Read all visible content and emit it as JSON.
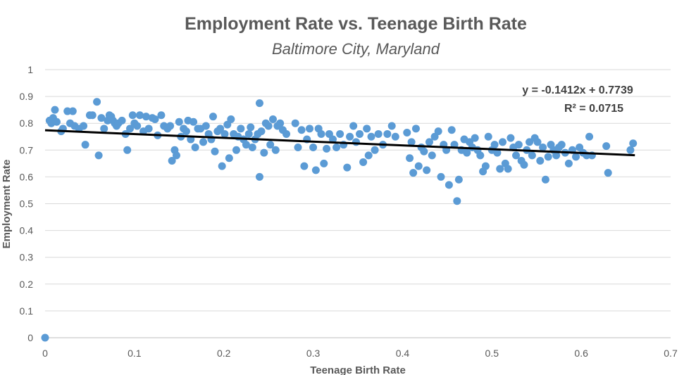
{
  "chart_data": {
    "type": "scatter",
    "title": "Employment Rate vs. Teenage Birth Rate",
    "subtitle": "Baltimore City, Maryland",
    "xlabel": "Teenage Birth Rate",
    "ylabel": "Employment Rate",
    "xlim": [
      0,
      0.7
    ],
    "ylim": [
      0,
      1
    ],
    "x_ticks": [
      "0",
      "0.1",
      "0.2",
      "0.3",
      "0.4",
      "0.5",
      "0.6",
      "0.7"
    ],
    "y_ticks": [
      "0",
      "0.1",
      "0.2",
      "0.3",
      "0.4",
      "0.5",
      "0.6",
      "0.7",
      "0.8",
      "0.9",
      "1"
    ],
    "grid": "horizontal",
    "marker_color": "#5b9bd5",
    "trendline": {
      "slope": -0.1412,
      "intercept": 0.7739,
      "equation": "y = -0.1412x + 0.7739",
      "r_squared": "R² = 0.0715",
      "color": "#000000"
    },
    "points": [
      [
        0.0,
        0.0
      ],
      [
        0.005,
        0.81
      ],
      [
        0.007,
        0.8
      ],
      [
        0.009,
        0.82
      ],
      [
        0.011,
        0.85
      ],
      [
        0.013,
        0.805
      ],
      [
        0.018,
        0.77
      ],
      [
        0.02,
        0.78
      ],
      [
        0.025,
        0.845
      ],
      [
        0.028,
        0.8
      ],
      [
        0.031,
        0.845
      ],
      [
        0.033,
        0.79
      ],
      [
        0.038,
        0.78
      ],
      [
        0.043,
        0.79
      ],
      [
        0.045,
        0.72
      ],
      [
        0.05,
        0.83
      ],
      [
        0.053,
        0.83
      ],
      [
        0.058,
        0.88
      ],
      [
        0.06,
        0.68
      ],
      [
        0.063,
        0.82
      ],
      [
        0.066,
        0.78
      ],
      [
        0.07,
        0.81
      ],
      [
        0.072,
        0.83
      ],
      [
        0.074,
        0.825
      ],
      [
        0.076,
        0.81
      ],
      [
        0.078,
        0.8
      ],
      [
        0.08,
        0.79
      ],
      [
        0.082,
        0.8
      ],
      [
        0.086,
        0.81
      ],
      [
        0.09,
        0.76
      ],
      [
        0.092,
        0.7
      ],
      [
        0.095,
        0.78
      ],
      [
        0.098,
        0.83
      ],
      [
        0.1,
        0.8
      ],
      [
        0.103,
        0.79
      ],
      [
        0.106,
        0.83
      ],
      [
        0.11,
        0.77
      ],
      [
        0.113,
        0.825
      ],
      [
        0.116,
        0.78
      ],
      [
        0.12,
        0.82
      ],
      [
        0.123,
        0.815
      ],
      [
        0.126,
        0.755
      ],
      [
        0.13,
        0.83
      ],
      [
        0.133,
        0.79
      ],
      [
        0.137,
        0.78
      ],
      [
        0.14,
        0.79
      ],
      [
        0.142,
        0.66
      ],
      [
        0.145,
        0.7
      ],
      [
        0.147,
        0.68
      ],
      [
        0.15,
        0.805
      ],
      [
        0.152,
        0.75
      ],
      [
        0.155,
        0.78
      ],
      [
        0.158,
        0.77
      ],
      [
        0.16,
        0.81
      ],
      [
        0.163,
        0.74
      ],
      [
        0.166,
        0.805
      ],
      [
        0.168,
        0.71
      ],
      [
        0.171,
        0.78
      ],
      [
        0.174,
        0.78
      ],
      [
        0.177,
        0.73
      ],
      [
        0.18,
        0.79
      ],
      [
        0.183,
        0.76
      ],
      [
        0.186,
        0.74
      ],
      [
        0.188,
        0.825
      ],
      [
        0.19,
        0.695
      ],
      [
        0.193,
        0.77
      ],
      [
        0.196,
        0.78
      ],
      [
        0.198,
        0.64
      ],
      [
        0.201,
        0.76
      ],
      [
        0.204,
        0.795
      ],
      [
        0.206,
        0.67
      ],
      [
        0.208,
        0.815
      ],
      [
        0.211,
        0.76
      ],
      [
        0.214,
        0.7
      ],
      [
        0.216,
        0.75
      ],
      [
        0.219,
        0.78
      ],
      [
        0.222,
        0.74
      ],
      [
        0.225,
        0.72
      ],
      [
        0.228,
        0.76
      ],
      [
        0.23,
        0.785
      ],
      [
        0.232,
        0.71
      ],
      [
        0.235,
        0.74
      ],
      [
        0.238,
        0.76
      ],
      [
        0.24,
        0.875
      ],
      [
        0.24,
        0.6
      ],
      [
        0.242,
        0.77
      ],
      [
        0.245,
        0.69
      ],
      [
        0.247,
        0.8
      ],
      [
        0.25,
        0.79
      ],
      [
        0.252,
        0.72
      ],
      [
        0.255,
        0.815
      ],
      [
        0.258,
        0.7
      ],
      [
        0.26,
        0.79
      ],
      [
        0.263,
        0.8
      ],
      [
        0.266,
        0.775
      ],
      [
        0.27,
        0.76
      ],
      [
        0.28,
        0.8
      ],
      [
        0.283,
        0.71
      ],
      [
        0.287,
        0.775
      ],
      [
        0.29,
        0.64
      ],
      [
        0.293,
        0.74
      ],
      [
        0.296,
        0.78
      ],
      [
        0.3,
        0.71
      ],
      [
        0.303,
        0.625
      ],
      [
        0.306,
        0.78
      ],
      [
        0.309,
        0.76
      ],
      [
        0.312,
        0.65
      ],
      [
        0.315,
        0.705
      ],
      [
        0.318,
        0.76
      ],
      [
        0.322,
        0.74
      ],
      [
        0.326,
        0.71
      ],
      [
        0.33,
        0.76
      ],
      [
        0.334,
        0.72
      ],
      [
        0.338,
        0.635
      ],
      [
        0.341,
        0.75
      ],
      [
        0.345,
        0.79
      ],
      [
        0.348,
        0.73
      ],
      [
        0.352,
        0.76
      ],
      [
        0.356,
        0.655
      ],
      [
        0.36,
        0.78
      ],
      [
        0.362,
        0.68
      ],
      [
        0.365,
        0.75
      ],
      [
        0.369,
        0.7
      ],
      [
        0.373,
        0.76
      ],
      [
        0.378,
        0.72
      ],
      [
        0.383,
        0.76
      ],
      [
        0.388,
        0.79
      ],
      [
        0.392,
        0.75
      ],
      [
        0.405,
        0.765
      ],
      [
        0.408,
        0.67
      ],
      [
        0.41,
        0.73
      ],
      [
        0.412,
        0.615
      ],
      [
        0.415,
        0.78
      ],
      [
        0.418,
        0.64
      ],
      [
        0.421,
        0.71
      ],
      [
        0.424,
        0.695
      ],
      [
        0.427,
        0.625
      ],
      [
        0.43,
        0.73
      ],
      [
        0.433,
        0.68
      ],
      [
        0.436,
        0.75
      ],
      [
        0.44,
        0.77
      ],
      [
        0.443,
        0.6
      ],
      [
        0.446,
        0.72
      ],
      [
        0.449,
        0.7
      ],
      [
        0.452,
        0.57
      ],
      [
        0.455,
        0.775
      ],
      [
        0.458,
        0.72
      ],
      [
        0.461,
        0.51
      ],
      [
        0.463,
        0.59
      ],
      [
        0.466,
        0.7
      ],
      [
        0.469,
        0.74
      ],
      [
        0.472,
        0.69
      ],
      [
        0.475,
        0.73
      ],
      [
        0.478,
        0.71
      ],
      [
        0.481,
        0.745
      ],
      [
        0.484,
        0.7
      ],
      [
        0.487,
        0.68
      ],
      [
        0.49,
        0.62
      ],
      [
        0.493,
        0.64
      ],
      [
        0.496,
        0.75
      ],
      [
        0.5,
        0.7
      ],
      [
        0.503,
        0.72
      ],
      [
        0.506,
        0.69
      ],
      [
        0.509,
        0.63
      ],
      [
        0.512,
        0.73
      ],
      [
        0.515,
        0.65
      ],
      [
        0.518,
        0.63
      ],
      [
        0.521,
        0.745
      ],
      [
        0.524,
        0.71
      ],
      [
        0.527,
        0.68
      ],
      [
        0.53,
        0.72
      ],
      [
        0.533,
        0.66
      ],
      [
        0.536,
        0.645
      ],
      [
        0.539,
        0.7
      ],
      [
        0.542,
        0.73
      ],
      [
        0.545,
        0.68
      ],
      [
        0.548,
        0.745
      ],
      [
        0.551,
        0.73
      ],
      [
        0.554,
        0.66
      ],
      [
        0.557,
        0.71
      ],
      [
        0.56,
        0.59
      ],
      [
        0.563,
        0.675
      ],
      [
        0.566,
        0.72
      ],
      [
        0.569,
        0.7
      ],
      [
        0.572,
        0.68
      ],
      [
        0.575,
        0.71
      ],
      [
        0.578,
        0.72
      ],
      [
        0.582,
        0.69
      ],
      [
        0.586,
        0.65
      ],
      [
        0.59,
        0.7
      ],
      [
        0.594,
        0.675
      ],
      [
        0.598,
        0.71
      ],
      [
        0.602,
        0.69
      ],
      [
        0.606,
        0.68
      ],
      [
        0.609,
        0.75
      ],
      [
        0.612,
        0.68
      ],
      [
        0.628,
        0.715
      ],
      [
        0.63,
        0.615
      ],
      [
        0.655,
        0.7
      ],
      [
        0.658,
        0.725
      ]
    ]
  }
}
